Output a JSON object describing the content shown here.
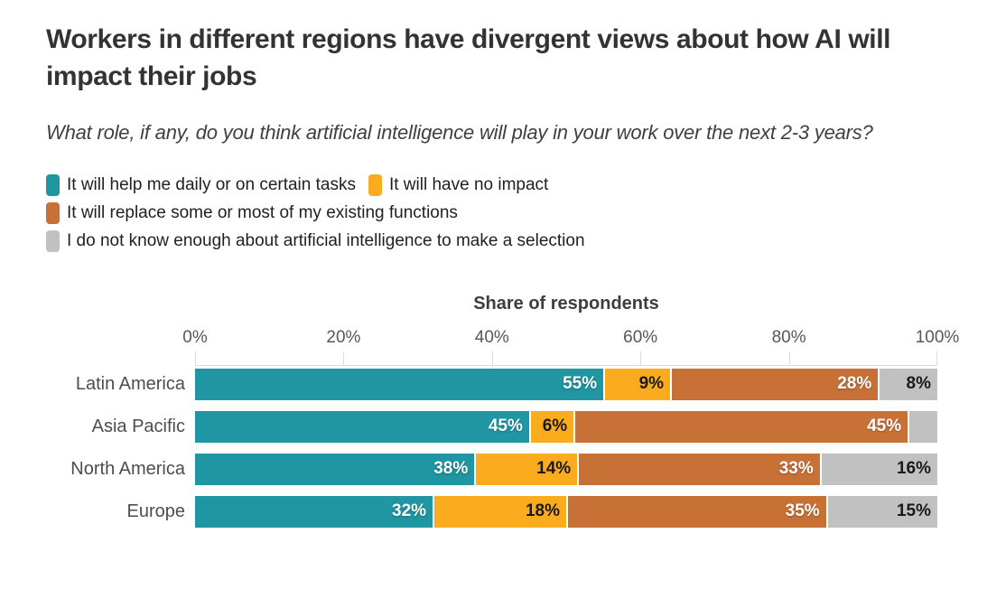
{
  "header": {
    "title": "Workers in different regions have divergent views about how AI will impact their jobs",
    "subtitle": "What role, if any, do you think artificial intelligence will play in your work over the next 2-3 years?"
  },
  "legend": {
    "rows": [
      [
        0,
        1
      ],
      [
        2
      ],
      [
        3
      ]
    ]
  },
  "chart_data": {
    "type": "bar",
    "orientation": "horizontal-stacked",
    "title": "Workers in different regions have divergent views about how AI will impact their jobs",
    "subtitle": "What role, if any, do you think artificial intelligence will play in your work over the next 2-3 years?",
    "axis_title": "Share of respondents",
    "x_ticks": [
      "0%",
      "20%",
      "40%",
      "60%",
      "80%",
      "100%"
    ],
    "xlim": [
      0,
      100
    ],
    "grid": false,
    "legend_position": "top-left",
    "categories": [
      "Latin America",
      "Asia Pacific",
      "North America",
      "Europe"
    ],
    "series": [
      {
        "name": "It will help me daily or on certain tasks",
        "color": "#1F96A1",
        "label_color": "#ffffff",
        "values": [
          55,
          45,
          38,
          32
        ],
        "labels": [
          "55%",
          "45%",
          "38%",
          "32%"
        ]
      },
      {
        "name": "It will have no impact",
        "color": "#FAAB1E",
        "label_color": "#1a1a1a",
        "values": [
          9,
          6,
          14,
          18
        ],
        "labels": [
          "9%",
          "6%",
          "14%",
          "18%"
        ]
      },
      {
        "name": "It will replace some or most of my existing functions",
        "color": "#C87137",
        "label_color": "#ffffff",
        "values": [
          28,
          45,
          33,
          35
        ],
        "labels": [
          "28%",
          "45%",
          "33%",
          "35%"
        ]
      },
      {
        "name": "I do not know enough about artificial intelligence to make a selection",
        "color": "#C1C1C1",
        "label_color": "#1a1a1a",
        "values": [
          8,
          4,
          16,
          15
        ],
        "labels": [
          "8%",
          "",
          "16%",
          "15%"
        ]
      }
    ],
    "axis_color": "#dcdcdc"
  }
}
